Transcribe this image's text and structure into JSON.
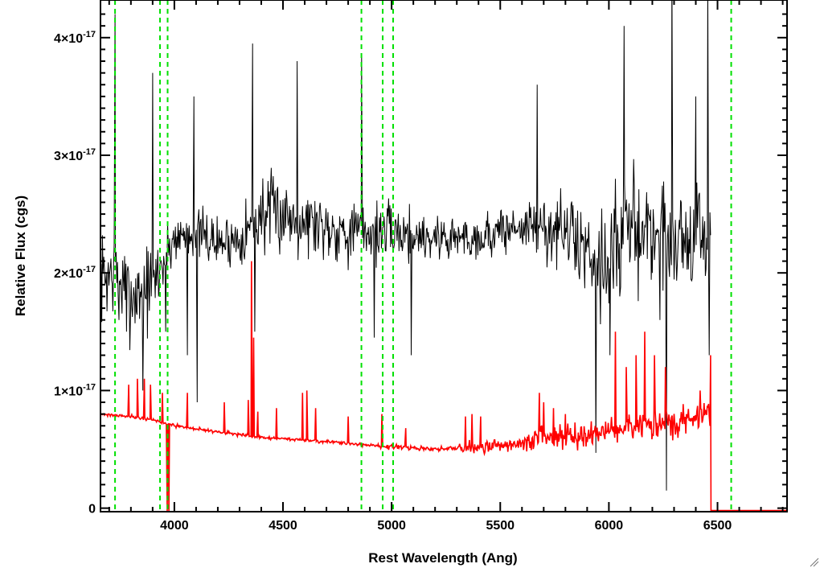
{
  "chart_data": {
    "type": "line",
    "title": "",
    "xlabel": "Rest Wavelength (Ang)",
    "ylabel": "Relative Flux (cgs)",
    "xlim": [
      3660,
      6820
    ],
    "ylim": [
      -0.03,
      4.32
    ],
    "y_unit_exponent": "-17",
    "x_ticks": [
      4000,
      4500,
      5000,
      5500,
      6000,
      6500
    ],
    "x_tick_labels": [
      "4000",
      "4500",
      "5000",
      "5500",
      "6000",
      "6500"
    ],
    "y_ticks": [
      0,
      1,
      2,
      3,
      4
    ],
    "y_tick_labels": [
      {
        "base": "0",
        "exp": ""
      },
      {
        "base": "1×10",
        "exp": "-17"
      },
      {
        "base": "2×10",
        "exp": "-17"
      },
      {
        "base": "3×10",
        "exp": "-17"
      },
      {
        "base": "4×10",
        "exp": "-17"
      }
    ],
    "grid": false,
    "series": [
      {
        "role": "spectrum",
        "color": "#000000",
        "step": 3,
        "cutoff_x": 6470,
        "noise_seed": 7,
        "continuum": [
          [
            3660,
            1.95
          ],
          [
            3720,
            2.0
          ],
          [
            3800,
            1.8
          ],
          [
            3900,
            1.9
          ],
          [
            3950,
            2.1
          ],
          [
            4000,
            2.3
          ],
          [
            4100,
            2.35
          ],
          [
            4200,
            2.25
          ],
          [
            4300,
            2.3
          ],
          [
            4400,
            2.5
          ],
          [
            4500,
            2.5
          ],
          [
            4600,
            2.45
          ],
          [
            4700,
            2.4
          ],
          [
            4800,
            2.35
          ],
          [
            5000,
            2.35
          ],
          [
            5200,
            2.3
          ],
          [
            5400,
            2.3
          ],
          [
            5600,
            2.4
          ],
          [
            5800,
            2.35
          ],
          [
            5900,
            2.2
          ],
          [
            6000,
            2.1
          ],
          [
            6100,
            2.4
          ],
          [
            6300,
            2.3
          ],
          [
            6470,
            2.3
          ]
        ],
        "noise_amplitude": [
          [
            3660,
            0.55
          ],
          [
            3900,
            0.55
          ],
          [
            4000,
            0.3
          ],
          [
            4300,
            0.35
          ],
          [
            4400,
            0.5
          ],
          [
            5000,
            0.35
          ],
          [
            5300,
            0.3
          ],
          [
            5600,
            0.3
          ],
          [
            5900,
            0.6
          ],
          [
            6100,
            0.7
          ],
          [
            6470,
            0.7
          ]
        ],
        "spikes": [
          [
            3727,
            4.2
          ],
          [
            3745,
            1.6
          ],
          [
            3780,
            1.5
          ],
          [
            3855,
            1.0
          ],
          [
            3900,
            3.7
          ],
          [
            3960,
            1.5
          ],
          [
            4060,
            1.3
          ],
          [
            4090,
            3.5
          ],
          [
            4105,
            0.9
          ],
          [
            4360,
            3.95
          ],
          [
            4370,
            1.5
          ],
          [
            4565,
            3.8
          ],
          [
            4862,
            3.85
          ],
          [
            4920,
            1.45
          ],
          [
            5090,
            1.3
          ],
          [
            5670,
            3.6
          ],
          [
            5940,
            0.47
          ],
          [
            6005,
            1.3
          ],
          [
            6030,
            2.8
          ],
          [
            6050,
            1.8
          ],
          [
            6070,
            4.1
          ],
          [
            6200,
            2.0
          ],
          [
            6235,
            1.6
          ],
          [
            6265,
            0.15
          ],
          [
            6290,
            4.6
          ],
          [
            6400,
            3.5
          ],
          [
            6455,
            4.5
          ],
          [
            6462,
            1.3
          ]
        ]
      },
      {
        "role": "error",
        "color": "#ff0000",
        "step": 3,
        "noise_seed": 21,
        "after_cutoff_value": -0.02,
        "continuum": [
          [
            3660,
            0.8
          ],
          [
            3800,
            0.78
          ],
          [
            3900,
            0.75
          ],
          [
            4000,
            0.7
          ],
          [
            4200,
            0.65
          ],
          [
            4400,
            0.6
          ],
          [
            4600,
            0.58
          ],
          [
            4800,
            0.55
          ],
          [
            5000,
            0.52
          ],
          [
            5200,
            0.5
          ],
          [
            5400,
            0.52
          ],
          [
            5600,
            0.55
          ],
          [
            5700,
            0.6
          ],
          [
            5800,
            0.62
          ],
          [
            5900,
            0.62
          ],
          [
            6000,
            0.65
          ],
          [
            6200,
            0.7
          ],
          [
            6400,
            0.75
          ],
          [
            6460,
            0.82
          ]
        ],
        "noise_amplitude": [
          [
            3660,
            0.02
          ],
          [
            4900,
            0.02
          ],
          [
            5000,
            0.03
          ],
          [
            5300,
            0.03
          ],
          [
            5350,
            0.08
          ],
          [
            5600,
            0.08
          ],
          [
            5650,
            0.15
          ],
          [
            6470,
            0.2
          ]
        ],
        "spikes": [
          [
            3790,
            1.05
          ],
          [
            3830,
            1.1
          ],
          [
            3862,
            1.1
          ],
          [
            3890,
            1.05
          ],
          [
            3945,
            0.98
          ],
          [
            3967,
            -0.03
          ],
          [
            3975,
            -0.03
          ],
          [
            4060,
            0.98
          ],
          [
            4230,
            0.9
          ],
          [
            4340,
            0.92
          ],
          [
            4355,
            2.1
          ],
          [
            4365,
            1.45
          ],
          [
            4384,
            0.82
          ],
          [
            4470,
            0.85
          ],
          [
            4590,
            0.98
          ],
          [
            4610,
            1.0
          ],
          [
            4650,
            0.85
          ],
          [
            4800,
            0.78
          ],
          [
            4955,
            0.8
          ],
          [
            5065,
            0.68
          ],
          [
            5340,
            0.78
          ],
          [
            5370,
            0.8
          ],
          [
            5410,
            0.78
          ],
          [
            5680,
            0.98
          ],
          [
            5700,
            0.9
          ],
          [
            5745,
            0.85
          ],
          [
            5800,
            0.8
          ],
          [
            6030,
            1.5
          ],
          [
            6080,
            1.2
          ],
          [
            6125,
            1.3
          ],
          [
            6165,
            1.5
          ],
          [
            6210,
            1.3
          ],
          [
            6260,
            1.2
          ],
          [
            6420,
            1.0
          ],
          [
            6468,
            1.3
          ]
        ]
      }
    ],
    "vertical_lines": {
      "color": "#00e000",
      "style": "dashed",
      "x": [
        3727,
        3934,
        3969,
        4861,
        4959,
        5007,
        6563
      ]
    }
  }
}
